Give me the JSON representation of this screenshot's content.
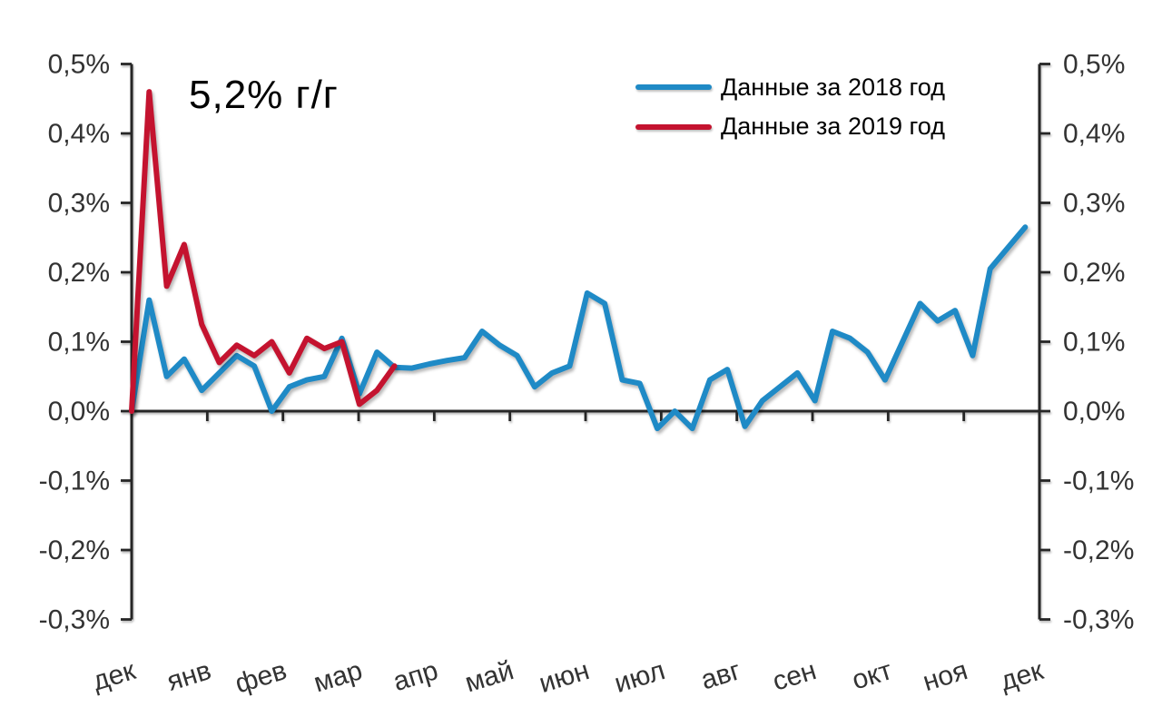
{
  "chart_data": {
    "type": "line",
    "annotation": "5,2% г/г",
    "x_tick_labels": [
      "дек",
      "янв",
      "фев",
      "мар",
      "апр",
      "май",
      "июн",
      "июл",
      "авг",
      "сен",
      "окт",
      "ноя",
      "дек"
    ],
    "y_tick_labels": [
      "0,5%",
      "0,4%",
      "0,3%",
      "0,2%",
      "0,1%",
      "0,0%",
      "-0,1%",
      "-0,2%",
      "-0,3%"
    ],
    "y_tick_values": [
      0.5,
      0.4,
      0.3,
      0.2,
      0.1,
      0.0,
      -0.1,
      -0.2,
      -0.3
    ],
    "ylim": [
      -0.3,
      0.5
    ],
    "grid": false,
    "legend_position": "top-right",
    "axis_color": "#262626",
    "series": [
      {
        "name": "Данные за 2018 год",
        "color": "#1F8AC6",
        "values": [
          0,
          0.16,
          0.05,
          0.075,
          0.03,
          0.055,
          0.08,
          0.065,
          0,
          0.035,
          0.045,
          0.05,
          0.105,
          0.025,
          0.085,
          0.063,
          0.062,
          0.068,
          0.073,
          0.077,
          0.115,
          0.095,
          0.08,
          0.035,
          0.055,
          0.065,
          0.17,
          0.155,
          0.045,
          0.04,
          -0.025,
          0,
          -0.025,
          0.045,
          0.06,
          -0.022,
          0.015,
          0.035,
          0.055,
          0.015,
          0.115,
          0.105,
          0.085,
          0.045,
          0.1,
          0.155,
          0.13,
          0.145,
          0.08,
          0.205,
          0.235,
          0.265
        ]
      },
      {
        "name": "Данные за 2019 год",
        "color": "#C4132F",
        "values": [
          0,
          0.46,
          0.18,
          0.24,
          0.125,
          0.07,
          0.095,
          0.08,
          0.1,
          0.055,
          0.105,
          0.09,
          0.1,
          0.01,
          0.03,
          0.065
        ]
      }
    ]
  }
}
